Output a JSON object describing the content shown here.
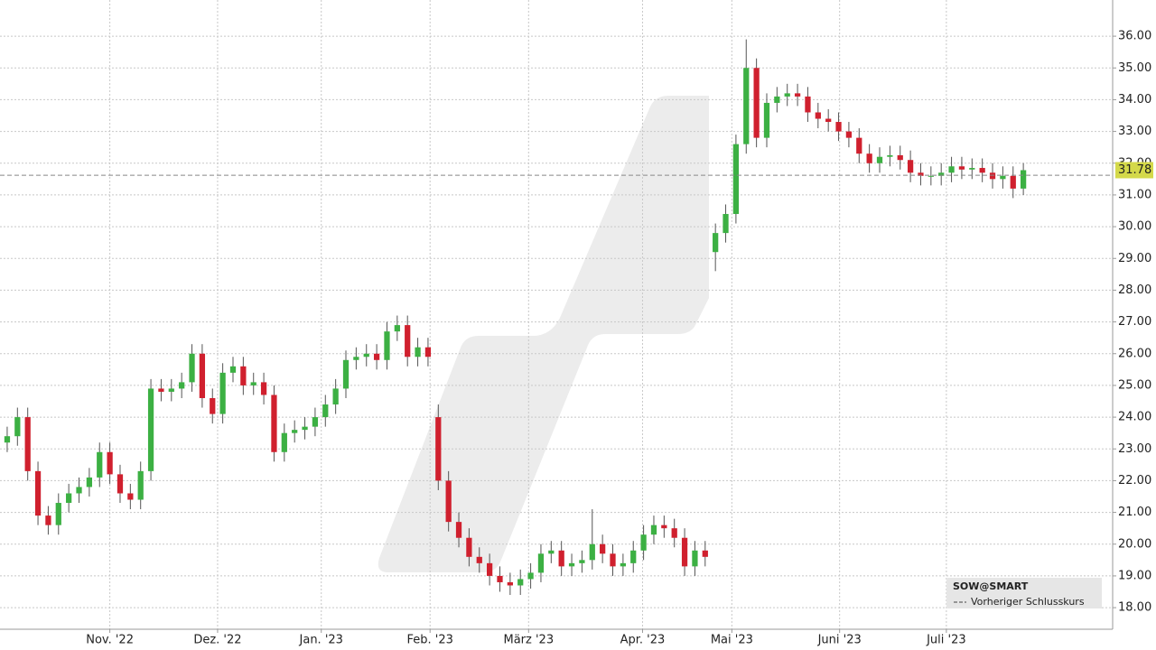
{
  "chart_data": {
    "type": "candlestick",
    "name": "SOW@SMART",
    "up_color": "#3cb043",
    "down_color": "#d0202e",
    "open": [
      23.2,
      23.4,
      24.0,
      22.3,
      20.9,
      20.6,
      21.3,
      21.6,
      21.8,
      22.1,
      22.9,
      22.2,
      21.6,
      21.4,
      22.3,
      24.9,
      24.8,
      24.9,
      25.1,
      26.0,
      24.6,
      24.1,
      25.4,
      25.6,
      25.0,
      25.1,
      24.7,
      22.9,
      23.5,
      23.6,
      23.7,
      24.0,
      24.4,
      24.9,
      25.8,
      25.9,
      26.0,
      25.8,
      26.7,
      26.9,
      25.9,
      26.2,
      24.0,
      22.0,
      20.7,
      20.2,
      19.6,
      19.4,
      19.0,
      18.8,
      18.7,
      18.9,
      19.1,
      19.7,
      19.8,
      19.3,
      19.4,
      19.5,
      20.0,
      19.7,
      19.3,
      19.4,
      19.8,
      20.3,
      20.6,
      20.5,
      20.2,
      19.3,
      19.8,
      29.2,
      29.8,
      30.4,
      32.6,
      35.0,
      32.8,
      33.9,
      34.1,
      34.2,
      34.1,
      33.6,
      33.4,
      33.3,
      33.0,
      32.8,
      32.3,
      32.0,
      32.2,
      32.25,
      32.1,
      31.7,
      31.6,
      31.6,
      31.7,
      31.9,
      31.8,
      31.85,
      31.7,
      31.5,
      31.6,
      31.2
    ],
    "high": [
      23.7,
      24.3,
      24.3,
      22.6,
      21.2,
      21.6,
      21.9,
      22.1,
      22.4,
      23.2,
      23.2,
      22.5,
      21.9,
      22.6,
      25.2,
      25.2,
      25.2,
      25.4,
      26.3,
      26.3,
      24.9,
      25.7,
      25.9,
      25.9,
      25.4,
      25.4,
      25.0,
      23.8,
      23.9,
      24.0,
      24.3,
      24.7,
      25.2,
      26.1,
      26.2,
      26.3,
      26.3,
      27.0,
      27.2,
      27.2,
      26.5,
      26.5,
      24.4,
      22.3,
      21.0,
      20.5,
      19.9,
      19.7,
      19.3,
      19.1,
      19.2,
      19.4,
      20.0,
      20.1,
      20.1,
      19.7,
      19.8,
      21.1,
      20.3,
      20.0,
      19.7,
      20.1,
      20.6,
      20.9,
      20.9,
      20.8,
      20.5,
      20.1,
      20.1,
      30.1,
      30.7,
      32.9,
      35.9,
      35.3,
      34.2,
      34.4,
      34.5,
      34.5,
      34.4,
      33.9,
      33.7,
      33.6,
      33.3,
      33.1,
      32.6,
      32.5,
      32.55,
      32.55,
      32.4,
      32.0,
      31.9,
      32.0,
      32.2,
      32.2,
      32.15,
      32.15,
      32.0,
      31.9,
      31.9,
      32.0
    ],
    "low": [
      22.9,
      23.1,
      22.0,
      20.6,
      20.3,
      20.3,
      21.0,
      21.3,
      21.5,
      21.8,
      21.9,
      21.3,
      21.1,
      21.1,
      22.0,
      24.5,
      24.5,
      24.6,
      24.8,
      24.3,
      23.8,
      23.8,
      25.1,
      24.7,
      24.7,
      24.4,
      22.6,
      22.6,
      23.2,
      23.3,
      23.4,
      23.7,
      24.1,
      24.6,
      25.5,
      25.6,
      25.5,
      25.5,
      26.4,
      25.6,
      25.6,
      25.6,
      21.7,
      20.4,
      19.9,
      19.3,
      19.1,
      18.7,
      18.5,
      18.4,
      18.4,
      18.6,
      18.8,
      19.4,
      19.0,
      19.0,
      19.1,
      19.2,
      19.4,
      19.0,
      19.0,
      19.1,
      19.5,
      20.0,
      20.2,
      19.9,
      19.0,
      19.0,
      19.3,
      28.6,
      29.5,
      30.1,
      32.3,
      32.5,
      32.5,
      33.6,
      33.8,
      33.8,
      33.3,
      33.1,
      33.0,
      32.7,
      32.5,
      32.0,
      31.7,
      31.7,
      31.9,
      31.8,
      31.4,
      31.3,
      31.3,
      31.3,
      31.4,
      31.5,
      31.5,
      31.4,
      31.2,
      31.2,
      30.9,
      31.0
    ],
    "close": [
      23.4,
      24.0,
      22.3,
      20.9,
      20.6,
      21.3,
      21.6,
      21.8,
      22.1,
      22.9,
      22.2,
      21.6,
      21.4,
      22.3,
      24.9,
      24.8,
      24.9,
      25.1,
      26.0,
      24.6,
      24.1,
      25.4,
      25.6,
      25.0,
      25.1,
      24.7,
      22.9,
      23.5,
      23.6,
      23.7,
      24.0,
      24.4,
      24.9,
      25.8,
      25.9,
      26.0,
      25.8,
      26.7,
      26.9,
      25.9,
      26.2,
      25.9,
      22.0,
      20.7,
      20.2,
      19.6,
      19.4,
      19.0,
      18.8,
      18.7,
      18.9,
      19.1,
      19.7,
      19.8,
      19.3,
      19.4,
      19.5,
      20.0,
      19.7,
      19.3,
      19.4,
      19.8,
      20.3,
      20.6,
      20.5,
      20.2,
      19.3,
      19.8,
      19.6,
      29.8,
      30.4,
      32.6,
      35.0,
      32.8,
      33.9,
      34.1,
      34.2,
      34.1,
      33.6,
      33.4,
      33.3,
      33.0,
      32.8,
      32.3,
      32.0,
      32.2,
      32.25,
      32.1,
      31.7,
      31.6,
      31.6,
      31.7,
      31.9,
      31.8,
      31.85,
      31.7,
      31.5,
      31.6,
      31.2,
      31.78
    ],
    "reference_line": {
      "name": "Vorheriger Schlusskurs",
      "value": 31.62,
      "color": "#888888"
    },
    "xlim": [
      -0.7,
      107.7
    ],
    "xticks": [
      {
        "value": 10.0,
        "label": "Nov. '22"
      },
      {
        "value": 20.5,
        "label": "Dez. '22"
      },
      {
        "value": 30.6,
        "label": "Jan. '23"
      },
      {
        "value": 41.2,
        "label": "Feb. '23"
      },
      {
        "value": 50.8,
        "label": "März '23"
      },
      {
        "value": 61.9,
        "label": "Apr. '23"
      },
      {
        "value": 70.6,
        "label": "Mai '23"
      },
      {
        "value": 81.1,
        "label": "Juni '23"
      },
      {
        "value": 91.5,
        "label": "Juli '23"
      }
    ],
    "ylim": [
      17.32,
      37.14
    ],
    "yticks": [
      {
        "value": 18,
        "label": "18.00"
      },
      {
        "value": 19,
        "label": "19.00"
      },
      {
        "value": 20,
        "label": "20.00"
      },
      {
        "value": 21,
        "label": "21.00"
      },
      {
        "value": 22,
        "label": "22.00"
      },
      {
        "value": 23,
        "label": "23.00"
      },
      {
        "value": 24,
        "label": "24.00"
      },
      {
        "value": 25,
        "label": "25.00"
      },
      {
        "value": 26,
        "label": "26.00"
      },
      {
        "value": 27,
        "label": "27.00"
      },
      {
        "value": 28,
        "label": "28.00"
      },
      {
        "value": 29,
        "label": "29.00"
      },
      {
        "value": 30,
        "label": "30.00"
      },
      {
        "value": 31,
        "label": "31.00"
      },
      {
        "value": 32,
        "label": "32.00"
      },
      {
        "value": 33,
        "label": "33.00"
      },
      {
        "value": 34,
        "label": "34.00"
      },
      {
        "value": 35,
        "label": "35.00"
      },
      {
        "value": 36,
        "label": "36.00"
      }
    ],
    "grid": true
  }
}
